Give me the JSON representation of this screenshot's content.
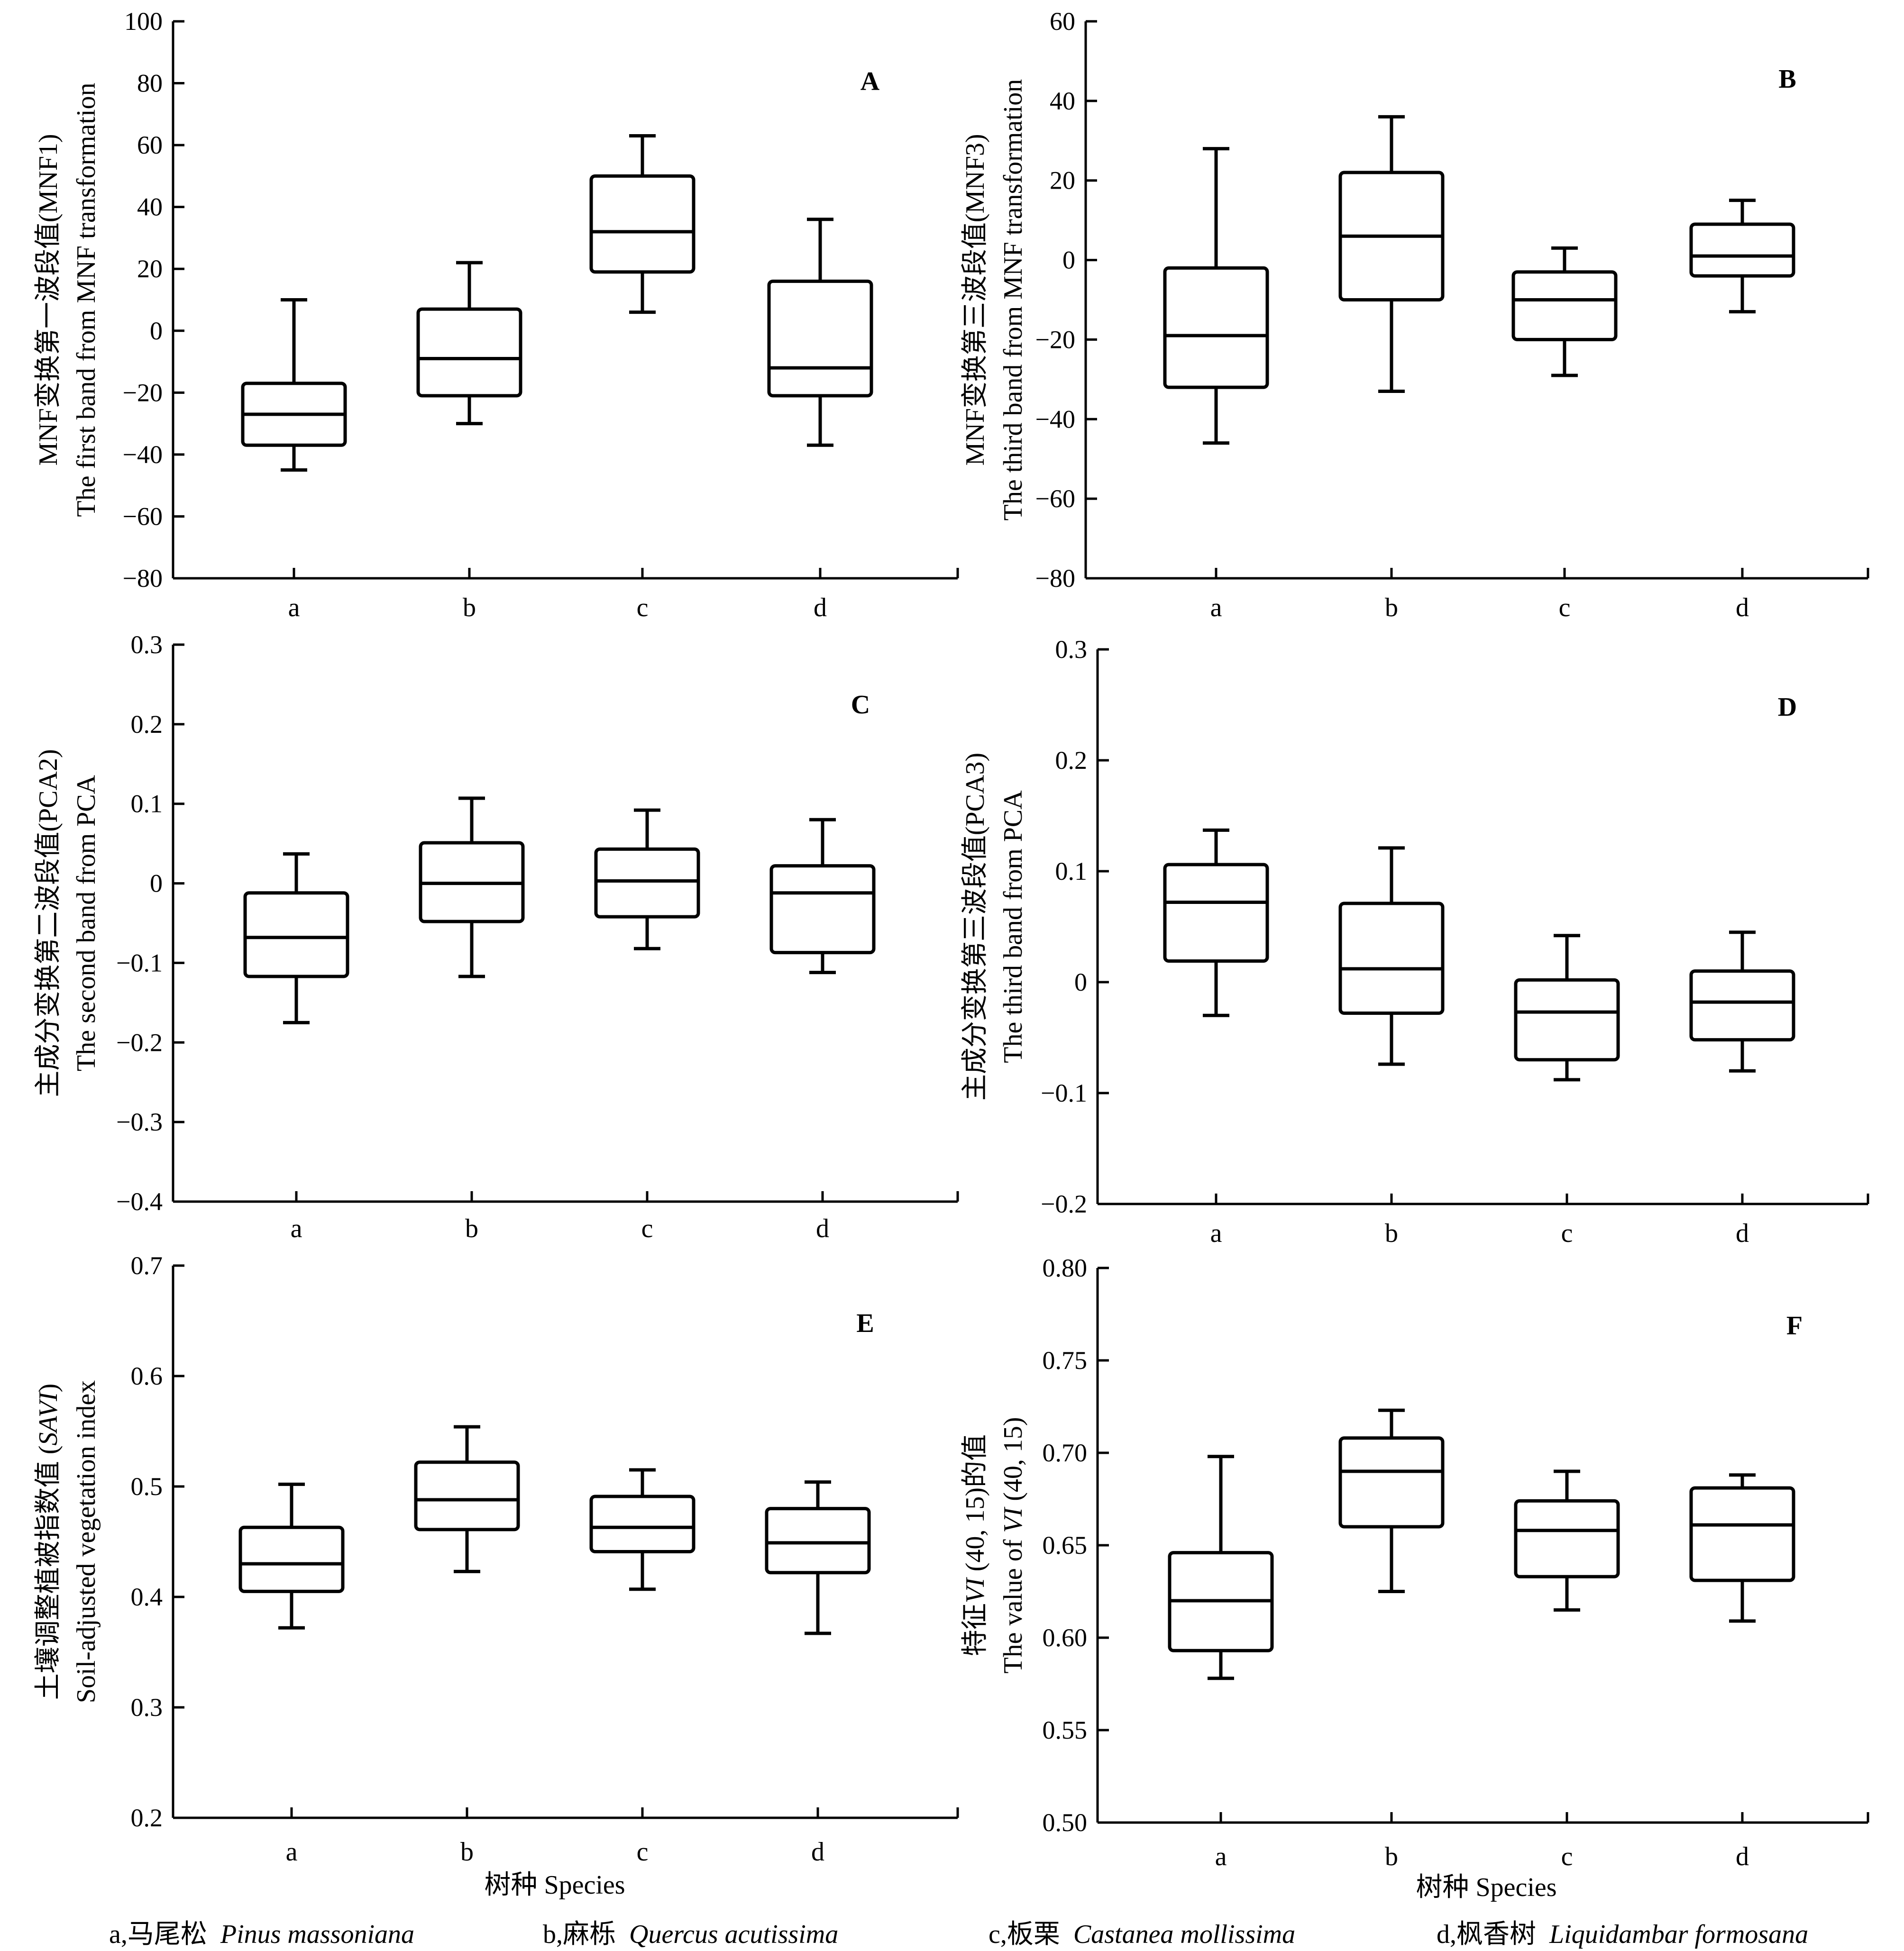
{
  "chart_data": [
    {
      "type": "box",
      "panel": "A",
      "ylabel": [
        "MNF变换第一波段值(MNF1)",
        "The first band from MNF transformation"
      ],
      "ylim": [
        -80,
        100
      ],
      "yticks": [
        "100",
        "80",
        "60",
        "40",
        "20",
        "0",
        "-20",
        "-40",
        "-60",
        "-80"
      ],
      "categories": [
        "a",
        "b",
        "c",
        "d"
      ],
      "boxes": [
        {
          "min": -45,
          "q1": -37,
          "median": -27,
          "q3": -17,
          "max": 10
        },
        {
          "min": -30,
          "q1": -21,
          "median": -9,
          "q3": 7,
          "max": 22
        },
        {
          "min": 6,
          "q1": 19,
          "median": 32,
          "q3": 50,
          "max": 63
        },
        {
          "min": -37,
          "q1": -21,
          "median": -12,
          "q3": 16,
          "max": 36
        }
      ]
    },
    {
      "type": "box",
      "panel": "B",
      "ylabel": [
        "MNF变换第三波段值(MNF3)",
        "The third band from MNF transformation"
      ],
      "ylim": [
        -80,
        60
      ],
      "yticks": [
        "60",
        "40",
        "20",
        "0",
        "-20",
        "-40",
        "-60",
        "-80"
      ],
      "categories": [
        "a",
        "b",
        "c",
        "d"
      ],
      "boxes": [
        {
          "min": -46,
          "q1": -32,
          "median": -19,
          "q3": -2,
          "max": 28
        },
        {
          "min": -33,
          "q1": -10,
          "median": 6,
          "q3": 22,
          "max": 36
        },
        {
          "min": -29,
          "q1": -20,
          "median": -10,
          "q3": -3,
          "max": 3
        },
        {
          "min": -13,
          "q1": -4,
          "median": 1,
          "q3": 9,
          "max": 15
        }
      ]
    },
    {
      "type": "box",
      "panel": "C",
      "ylabel": [
        "主成分变换第二波段值(PCA2)",
        "The second band from PCA"
      ],
      "ylim": [
        -0.4,
        0.3
      ],
      "yticks": [
        "0.3",
        "0.2",
        "0.1",
        "0",
        "-0.1",
        "-0.2",
        "-0.3",
        "-0.4"
      ],
      "categories": [
        "a",
        "b",
        "c",
        "d"
      ],
      "boxes": [
        {
          "min": -0.175,
          "q1": -0.117,
          "median": -0.068,
          "q3": -0.012,
          "max": 0.037
        },
        {
          "min": -0.117,
          "q1": -0.048,
          "median": 0.0,
          "q3": 0.051,
          "max": 0.107
        },
        {
          "min": -0.082,
          "q1": -0.042,
          "median": 0.003,
          "q3": 0.043,
          "max": 0.092
        },
        {
          "min": -0.112,
          "q1": -0.087,
          "median": -0.012,
          "q3": 0.022,
          "max": 0.08
        }
      ]
    },
    {
      "type": "box",
      "panel": "D",
      "ylabel": [
        "主成分变换第三波段值(PCA3)",
        "The third band from PCA"
      ],
      "ylim": [
        -0.2,
        0.3
      ],
      "yticks": [
        "0.3",
        "0.2",
        "0.1",
        "0",
        "-0.1",
        "-0.2"
      ],
      "categories": [
        "a",
        "b",
        "c",
        "d"
      ],
      "boxes": [
        {
          "min": -0.03,
          "q1": 0.019,
          "median": 0.072,
          "q3": 0.106,
          "max": 0.137
        },
        {
          "min": -0.074,
          "q1": -0.028,
          "median": 0.012,
          "q3": 0.071,
          "max": 0.121
        },
        {
          "min": -0.088,
          "q1": -0.07,
          "median": -0.027,
          "q3": 0.002,
          "max": 0.042
        },
        {
          "min": -0.08,
          "q1": -0.052,
          "median": -0.018,
          "q3": 0.01,
          "max": 0.045
        }
      ]
    },
    {
      "type": "box",
      "panel": "E",
      "ylabel": [
        "土壤调整植被指数值 (SAVI)",
        "Soil-adjusted vegetation index"
      ],
      "ylim": [
        0.2,
        0.7
      ],
      "yticks": [
        "0.7",
        "0.6",
        "0.5",
        "0.4",
        "0.3",
        "0.2"
      ],
      "categories": [
        "a",
        "b",
        "c",
        "d"
      ],
      "xlabel": "树种 Species",
      "boxes": [
        {
          "min": 0.372,
          "q1": 0.405,
          "median": 0.43,
          "q3": 0.463,
          "max": 0.502
        },
        {
          "min": 0.423,
          "q1": 0.461,
          "median": 0.488,
          "q3": 0.522,
          "max": 0.554
        },
        {
          "min": 0.407,
          "q1": 0.441,
          "median": 0.463,
          "q3": 0.491,
          "max": 0.515
        },
        {
          "min": 0.367,
          "q1": 0.422,
          "median": 0.449,
          "q3": 0.48,
          "max": 0.504
        }
      ]
    },
    {
      "type": "box",
      "panel": "F",
      "ylabel": [
        "特征VI (40, 15)的值",
        "The value of VI (40, 15)"
      ],
      "ylim": [
        0.5,
        0.8
      ],
      "yticks": [
        "0.80",
        "0.75",
        "0.70",
        "0.65",
        "0.60",
        "0.55",
        "0.50"
      ],
      "categories": [
        "a",
        "b",
        "c",
        "d"
      ],
      "xlabel": "树种 Species",
      "boxes": [
        {
          "min": 0.578,
          "q1": 0.593,
          "median": 0.62,
          "q3": 0.646,
          "max": 0.698
        },
        {
          "min": 0.625,
          "q1": 0.66,
          "median": 0.69,
          "q3": 0.708,
          "max": 0.723
        },
        {
          "min": 0.615,
          "q1": 0.633,
          "median": 0.658,
          "q3": 0.674,
          "max": 0.69
        },
        {
          "min": 0.609,
          "q1": 0.631,
          "median": 0.661,
          "q3": 0.681,
          "max": 0.688
        }
      ]
    }
  ],
  "legend": {
    "a_key": "a,马尾松",
    "a_name": "Pinus massoniana",
    "b_key": "b,麻栎",
    "b_name": "Quercus acutissima",
    "c_key": "c,板栗",
    "c_name": "Castanea mollissima",
    "d_key": "d,枫香树",
    "d_name": "Liquidambar formosana"
  }
}
